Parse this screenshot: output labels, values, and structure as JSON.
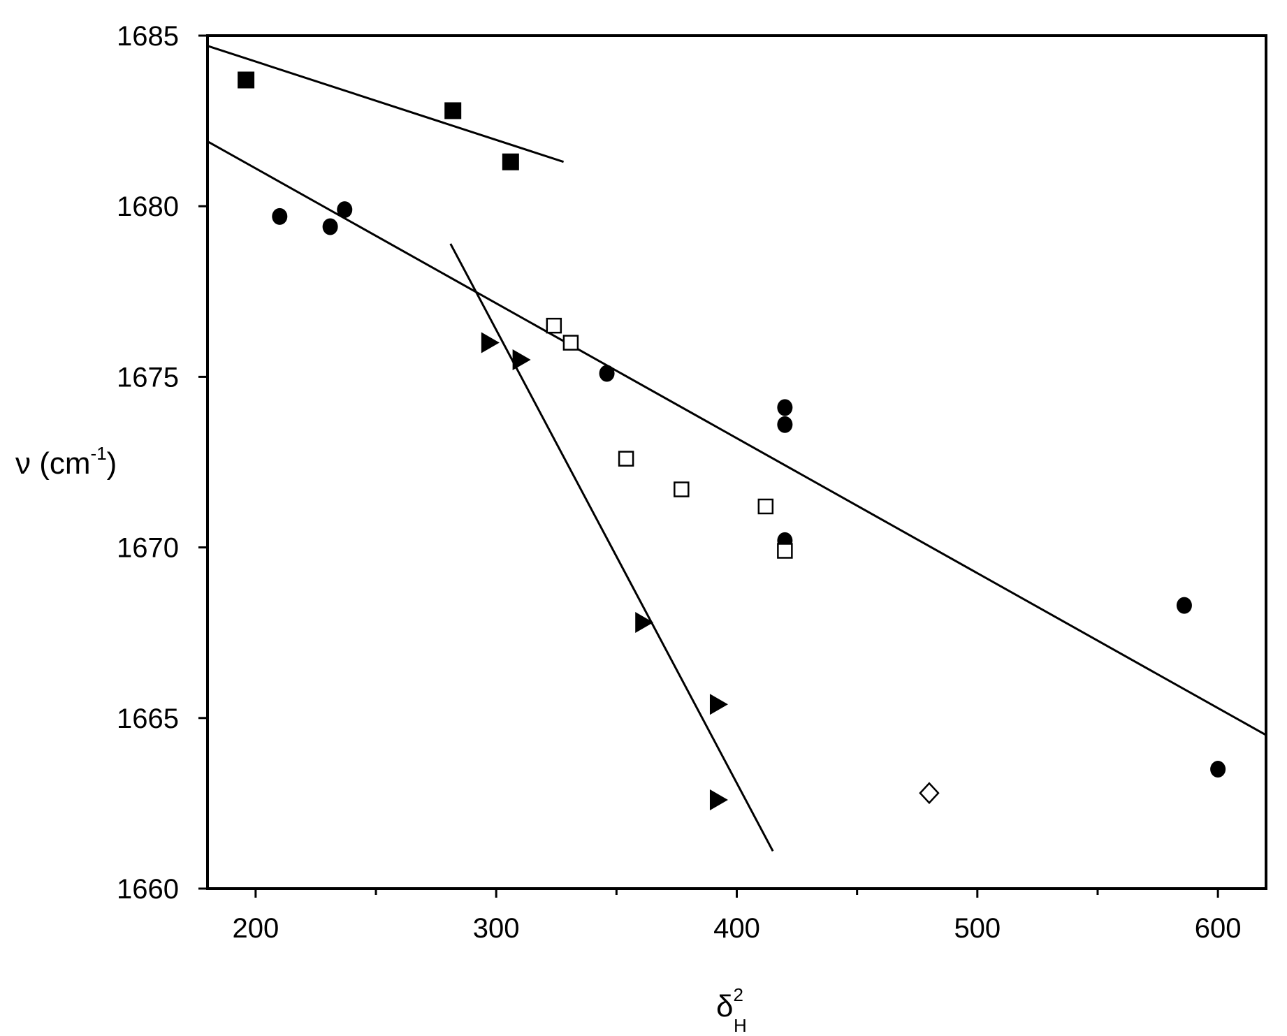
{
  "chart_data": {
    "type": "scatter",
    "title": "",
    "xlabel": {
      "base": "δ",
      "sup": "2",
      "sub": "H"
    },
    "ylabel": {
      "prefix": "ν (cm",
      "sup": "-1",
      "suffix": ")"
    },
    "xlim": [
      180,
      620
    ],
    "ylim": [
      1660,
      1685
    ],
    "xticks": [
      200,
      300,
      400,
      500,
      600
    ],
    "yticks": [
      1660,
      1665,
      1670,
      1675,
      1680,
      1685
    ],
    "grid": false,
    "legend": "none",
    "series": [
      {
        "marker": "filled-square",
        "color": "#000000",
        "points": [
          [
            196,
            1683.7
          ],
          [
            282,
            1682.8
          ],
          [
            306,
            1681.3
          ]
        ]
      },
      {
        "marker": "filled-circle",
        "color": "#000000",
        "points": [
          [
            210,
            1679.7
          ],
          [
            231,
            1679.4
          ],
          [
            237,
            1679.9
          ],
          [
            346,
            1675.1
          ],
          [
            420,
            1674.1
          ],
          [
            420,
            1673.6
          ],
          [
            420,
            1670.2
          ],
          [
            586,
            1668.3
          ],
          [
            600,
            1663.5
          ]
        ]
      },
      {
        "marker": "open-square",
        "color": "#000000",
        "points": [
          [
            324,
            1676.5
          ],
          [
            331,
            1676.0
          ],
          [
            354,
            1672.6
          ],
          [
            377,
            1671.7
          ],
          [
            412,
            1671.2
          ],
          [
            420,
            1669.9
          ]
        ]
      },
      {
        "marker": "filled-triangle-right",
        "color": "#000000",
        "points": [
          [
            297,
            1676.0
          ],
          [
            310,
            1675.5
          ],
          [
            361,
            1667.8
          ],
          [
            392,
            1665.4
          ],
          [
            392,
            1662.6
          ]
        ]
      },
      {
        "marker": "open-diamond",
        "color": "#000000",
        "points": [
          [
            480,
            1662.8
          ]
        ]
      }
    ],
    "fit_lines": [
      {
        "x": [
          180,
          328
        ],
        "y": [
          1684.7,
          1681.3
        ]
      },
      {
        "x": [
          180,
          620
        ],
        "y": [
          1681.9,
          1664.5
        ]
      },
      {
        "x": [
          281,
          415
        ],
        "y": [
          1678.9,
          1661.1
        ]
      }
    ]
  }
}
